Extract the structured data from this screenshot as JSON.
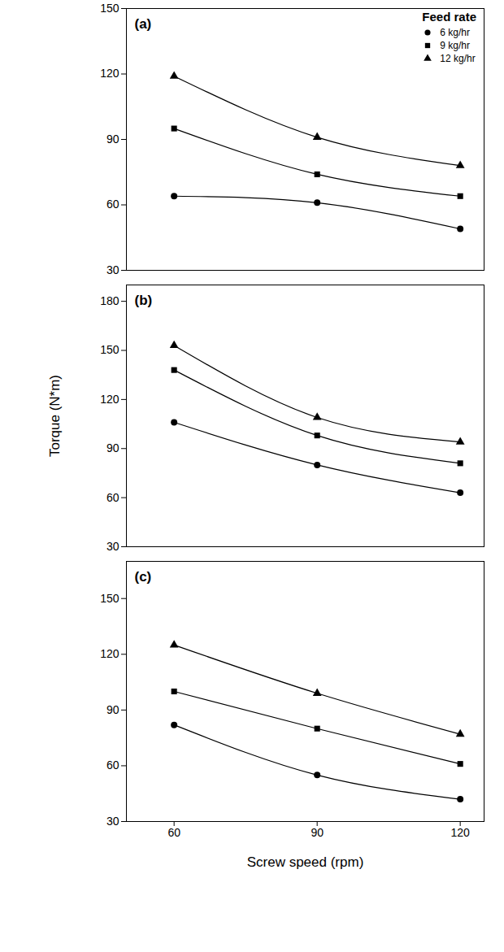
{
  "chart_data": [
    {
      "type": "line",
      "title": "(a)",
      "legend": "top-right",
      "legend_title": "Feed rate",
      "x": [
        60,
        90,
        120
      ],
      "xlim": [
        50,
        125
      ],
      "xticks": [
        60,
        90,
        120
      ],
      "ylim": [
        30,
        150
      ],
      "yticks": [
        30,
        60,
        90,
        120,
        150
      ],
      "tick_labels": "y",
      "series": [
        {
          "name": "6 kg/hr",
          "color": "#000000",
          "marker": "circle",
          "line_style": "solid",
          "values": [
            64,
            61,
            49
          ]
        },
        {
          "name": "9 kg/hr",
          "color": "#000000",
          "marker": "square",
          "line_style": "solid",
          "values": [
            95,
            74,
            64
          ]
        },
        {
          "name": "12 kg/hr",
          "color": "#000000",
          "marker": "triangle",
          "line_style": "solid",
          "values": [
            119,
            91,
            78
          ]
        }
      ]
    },
    {
      "type": "line",
      "title": "(b)",
      "ylabel": "Torque (N*m)",
      "x": [
        60,
        90,
        120
      ],
      "xlim": [
        50,
        125
      ],
      "xticks": [
        60,
        90,
        120
      ],
      "ylim": [
        30,
        190
      ],
      "yticks": [
        30,
        60,
        90,
        120,
        150,
        180
      ],
      "tick_labels": "y",
      "series": [
        {
          "name": "6 kg/hr",
          "color": "#000000",
          "marker": "circle",
          "line_style": "solid",
          "values": [
            106,
            80,
            63
          ]
        },
        {
          "name": "9 kg/hr",
          "color": "#000000",
          "marker": "square",
          "line_style": "solid",
          "values": [
            138,
            98,
            81
          ]
        },
        {
          "name": "12 kg/hr",
          "color": "#000000",
          "marker": "triangle",
          "line_style": "solid",
          "values": [
            153,
            109,
            94
          ]
        }
      ]
    },
    {
      "type": "line",
      "title": "(c)",
      "xlabel": "Screw speed (rpm)",
      "x": [
        60,
        90,
        120
      ],
      "xlim": [
        50,
        125
      ],
      "xticks": [
        60,
        90,
        120
      ],
      "ylim": [
        30,
        170
      ],
      "yticks": [
        30,
        60,
        90,
        120,
        150
      ],
      "series": [
        {
          "name": "6 kg/hr",
          "color": "#000000",
          "marker": "circle",
          "line_style": "solid",
          "values": [
            82,
            55,
            42
          ]
        },
        {
          "name": "9 kg/hr",
          "color": "#000000",
          "marker": "square",
          "line_style": "solid",
          "values": [
            100,
            80,
            61
          ]
        },
        {
          "name": "12 kg/hr",
          "color": "#000000",
          "marker": "triangle",
          "line_style": "solid",
          "values": [
            125,
            99,
            77
          ]
        }
      ]
    }
  ]
}
